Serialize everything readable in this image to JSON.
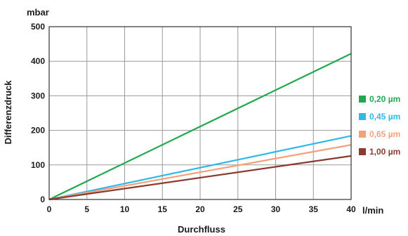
{
  "chart_data": {
    "type": "line",
    "unit_top": "mbar",
    "ylabel": "Differenzdruck",
    "xlabel": "Durchfluss",
    "x_unit": "l/min",
    "xlim": [
      0,
      40
    ],
    "ylim": [
      0,
      500
    ],
    "x_ticks": [
      "0",
      "5",
      "10",
      "15",
      "20",
      "25",
      "30",
      "35",
      "40"
    ],
    "y_ticks": [
      "0",
      "100",
      "200",
      "300",
      "400",
      "500"
    ],
    "grid": true,
    "legend_position": "right",
    "series": [
      {
        "name": "0,20 µm",
        "color": "#22a94f",
        "x": [
          0,
          40
        ],
        "y": [
          0,
          422
        ]
      },
      {
        "name": "0,45 µm",
        "color": "#2fb8ea",
        "x": [
          0,
          40
        ],
        "y": [
          0,
          184
        ]
      },
      {
        "name": "0,65 µm",
        "color": "#f4a07a",
        "x": [
          0,
          40
        ],
        "y": [
          0,
          158
        ]
      },
      {
        "name": "1,00 µm",
        "color": "#8b3a2f",
        "x": [
          0,
          40
        ],
        "y": [
          0,
          126
        ]
      }
    ]
  }
}
